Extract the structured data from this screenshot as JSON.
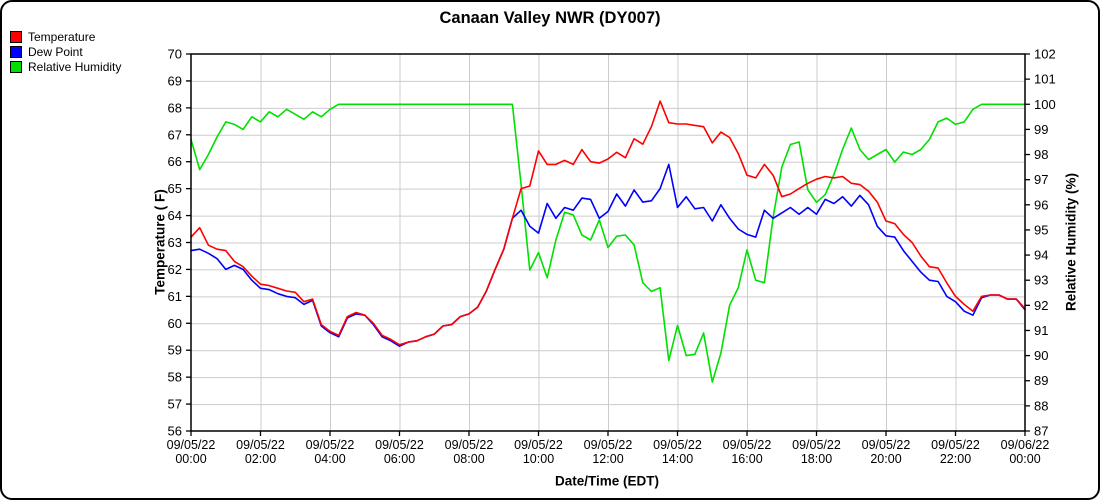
{
  "title": "Canaan Valley NWR (DY007)",
  "chart_data": {
    "type": "line",
    "title": "Canaan Valley NWR (DY007)",
    "grid": true,
    "legend_position": "top-left",
    "sample_start": "09/05/22 00:00",
    "sample_interval_minutes": 15,
    "x_axis": {
      "title": "Date/Time (EDT)",
      "min_hour": 0,
      "max_hour": 24,
      "tick_interval_hours": 2,
      "tick_labels": [
        {
          "date": "09/05/22",
          "time": "00:00"
        },
        {
          "date": "09/05/22",
          "time": "02:00"
        },
        {
          "date": "09/05/22",
          "time": "04:00"
        },
        {
          "date": "09/05/22",
          "time": "06:00"
        },
        {
          "date": "09/05/22",
          "time": "08:00"
        },
        {
          "date": "09/05/22",
          "time": "10:00"
        },
        {
          "date": "09/05/22",
          "time": "12:00"
        },
        {
          "date": "09/05/22",
          "time": "14:00"
        },
        {
          "date": "09/05/22",
          "time": "16:00"
        },
        {
          "date": "09/05/22",
          "time": "18:00"
        },
        {
          "date": "09/05/22",
          "time": "20:00"
        },
        {
          "date": "09/05/22",
          "time": "22:00"
        },
        {
          "date": "09/06/22",
          "time": "00:00"
        }
      ]
    },
    "left_axis": {
      "title": "Temperature ( F)",
      "min": 56,
      "max": 70,
      "tick_step": 1,
      "ticks": [
        56,
        57,
        58,
        59,
        60,
        61,
        62,
        63,
        64,
        65,
        66,
        67,
        68,
        69,
        70
      ]
    },
    "right_axis": {
      "title": "Relative Humidity (%)",
      "min": 87,
      "max": 102,
      "tick_step": 1,
      "ticks": [
        87,
        88,
        89,
        90,
        91,
        92,
        93,
        94,
        95,
        96,
        97,
        98,
        99,
        100,
        101,
        102
      ]
    },
    "series": [
      {
        "name": "Temperature",
        "color": "#ff0000",
        "axis": "left",
        "values": [
          63.2,
          63.55,
          62.9,
          62.75,
          62.7,
          62.3,
          62.1,
          61.75,
          61.45,
          61.4,
          61.3,
          61.2,
          61.15,
          60.8,
          60.9,
          59.95,
          59.7,
          59.55,
          60.25,
          60.4,
          60.3,
          60.0,
          59.55,
          59.4,
          59.2,
          59.3,
          59.35,
          59.5,
          59.6,
          59.9,
          59.95,
          60.25,
          60.35,
          60.6,
          61.2,
          62.0,
          62.75,
          63.9,
          65.0,
          65.1,
          66.4,
          65.9,
          65.9,
          66.05,
          65.9,
          66.45,
          66.0,
          65.95,
          66.1,
          66.35,
          66.15,
          66.85,
          66.65,
          67.3,
          68.25,
          67.45,
          67.4,
          67.4,
          67.35,
          67.3,
          66.7,
          67.1,
          66.9,
          66.3,
          65.5,
          65.4,
          65.9,
          65.5,
          64.7,
          64.8,
          65.0,
          65.2,
          65.35,
          65.45,
          65.4,
          65.45,
          65.2,
          65.15,
          64.9,
          64.5,
          63.8,
          63.7,
          63.3,
          63.0,
          62.5,
          62.1,
          62.05,
          61.5,
          61.0,
          60.7,
          60.45,
          61.0,
          61.05,
          61.05,
          60.9,
          60.9,
          60.55
        ]
      },
      {
        "name": "Dew Point",
        "color": "#0000ff",
        "axis": "left",
        "values": [
          62.7,
          62.75,
          62.6,
          62.4,
          62.0,
          62.15,
          62.0,
          61.6,
          61.3,
          61.25,
          61.1,
          61.0,
          60.95,
          60.7,
          60.85,
          59.9,
          59.65,
          59.5,
          60.2,
          60.35,
          60.3,
          59.95,
          59.5,
          59.35,
          59.15,
          59.3,
          59.35,
          59.5,
          59.6,
          59.9,
          59.95,
          60.25,
          60.35,
          60.6,
          61.2,
          62.0,
          62.75,
          63.9,
          64.2,
          63.6,
          63.35,
          64.45,
          63.9,
          64.3,
          64.2,
          64.65,
          64.6,
          63.9,
          64.15,
          64.8,
          64.35,
          64.95,
          64.5,
          64.55,
          65.0,
          65.9,
          64.3,
          64.7,
          64.25,
          64.3,
          63.8,
          64.4,
          63.9,
          63.5,
          63.3,
          63.2,
          64.2,
          63.9,
          64.1,
          64.3,
          64.05,
          64.3,
          64.05,
          64.6,
          64.45,
          64.7,
          64.35,
          64.75,
          64.4,
          63.6,
          63.25,
          63.2,
          62.7,
          62.3,
          61.9,
          61.6,
          61.55,
          61.0,
          60.8,
          60.45,
          60.3,
          60.95,
          61.05,
          61.05,
          60.9,
          60.9,
          60.5
        ]
      },
      {
        "name": "Relative Humidity",
        "color": "#00e000",
        "axis": "right",
        "values": [
          98.6,
          97.4,
          98.0,
          98.7,
          99.3,
          99.2,
          99.0,
          99.5,
          99.3,
          99.7,
          99.5,
          99.8,
          99.6,
          99.4,
          99.7,
          99.5,
          99.8,
          100,
          100,
          100,
          100,
          100,
          100,
          100,
          100,
          100,
          100,
          100,
          100,
          100,
          100,
          100,
          100,
          100,
          100,
          100,
          100,
          100,
          96.8,
          93.4,
          94.1,
          93.1,
          94.6,
          95.7,
          95.6,
          94.8,
          94.6,
          95.4,
          94.3,
          94.75,
          94.8,
          94.4,
          92.9,
          92.55,
          92.7,
          89.8,
          91.2,
          90.0,
          90.05,
          90.9,
          88.95,
          90.1,
          92.0,
          92.7,
          94.2,
          93.0,
          92.9,
          95.5,
          97.5,
          98.4,
          98.5,
          96.6,
          96.1,
          96.4,
          97.2,
          98.2,
          99.05,
          98.2,
          97.8,
          98.0,
          98.2,
          97.7,
          98.1,
          98.0,
          98.2,
          98.6,
          99.3,
          99.45,
          99.2,
          99.3,
          99.8,
          100,
          100,
          100,
          100,
          100,
          100
        ]
      }
    ]
  }
}
